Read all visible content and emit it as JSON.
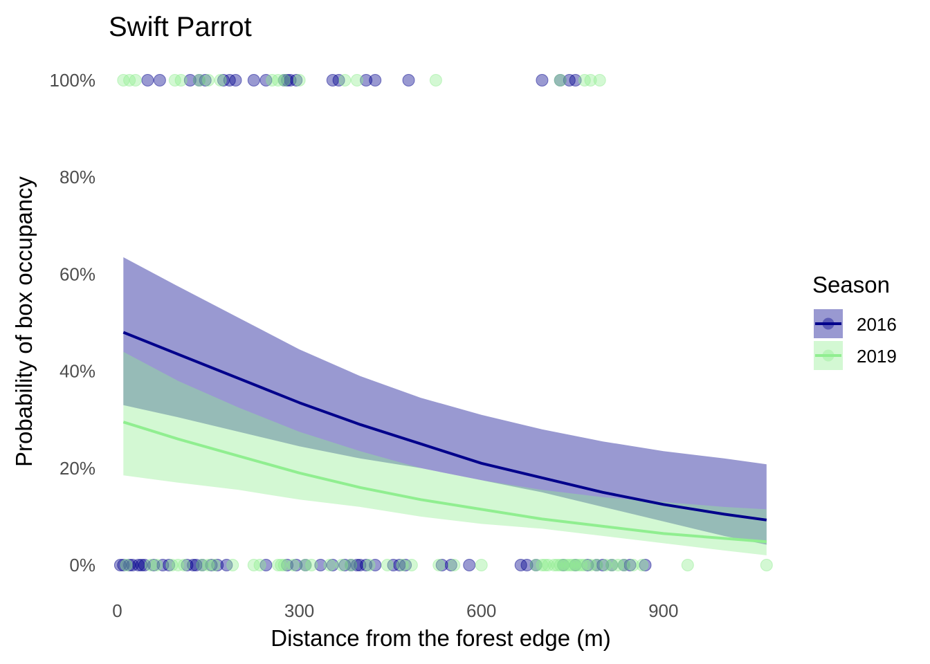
{
  "chart_data": {
    "type": "line",
    "title": "Swift Parrot",
    "xlabel": "Distance from the forest edge (m)",
    "ylabel": "Probability of box occupancy",
    "xlim": [
      -20,
      1085
    ],
    "ylim": [
      -0.04,
      1.04
    ],
    "x_ticks": [
      0,
      300,
      600,
      900
    ],
    "x_tick_labels": [
      "0",
      "300",
      "600",
      "900"
    ],
    "y_ticks": [
      0,
      0.2,
      0.4,
      0.6,
      0.8,
      1.0
    ],
    "y_tick_labels": [
      "0%",
      "20%",
      "40%",
      "60%",
      "80%",
      "100%"
    ],
    "grid": false,
    "legend": {
      "title": "Season",
      "placement": "right"
    },
    "series": [
      {
        "name": "2016",
        "color": "#00008b",
        "fill_color": "#00008b",
        "points": [
          {
            "x": 10,
            "fit": 0.48,
            "lower": 0.33,
            "upper": 0.635
          },
          {
            "x": 100,
            "fit": 0.435,
            "lower": 0.305,
            "upper": 0.575
          },
          {
            "x": 200,
            "fit": 0.385,
            "lower": 0.275,
            "upper": 0.51
          },
          {
            "x": 300,
            "fit": 0.335,
            "lower": 0.245,
            "upper": 0.445
          },
          {
            "x": 400,
            "fit": 0.29,
            "lower": 0.22,
            "upper": 0.39
          },
          {
            "x": 500,
            "fit": 0.25,
            "lower": 0.2,
            "upper": 0.345
          },
          {
            "x": 600,
            "fit": 0.21,
            "lower": 0.175,
            "upper": 0.31
          },
          {
            "x": 700,
            "fit": 0.18,
            "lower": 0.15,
            "upper": 0.28
          },
          {
            "x": 800,
            "fit": 0.15,
            "lower": 0.12,
            "upper": 0.255
          },
          {
            "x": 900,
            "fit": 0.125,
            "lower": 0.09,
            "upper": 0.235
          },
          {
            "x": 1000,
            "fit": 0.105,
            "lower": 0.06,
            "upper": 0.22
          },
          {
            "x": 1070,
            "fit": 0.093,
            "lower": 0.042,
            "upper": 0.208
          }
        ],
        "observed_occupied_x": [
          50,
          70,
          120,
          135,
          145,
          175,
          185,
          195,
          225,
          245,
          275,
          280,
          285,
          295,
          355,
          365,
          410,
          425,
          480,
          700,
          730,
          745,
          755
        ],
        "observed_unoccupied_x": [
          5,
          10,
          20,
          25,
          35,
          40,
          45,
          60,
          75,
          85,
          115,
          125,
          130,
          140,
          155,
          165,
          180,
          245,
          280,
          295,
          310,
          335,
          355,
          375,
          385,
          395,
          400,
          410,
          425,
          455,
          465,
          475,
          535,
          550,
          580,
          665,
          675,
          690,
          735,
          755,
          775,
          790,
          800,
          815,
          835,
          845,
          870
        ]
      },
      {
        "name": "2019",
        "color": "#90ee90",
        "fill_color": "#90ee90",
        "points": [
          {
            "x": 10,
            "fit": 0.295,
            "lower": 0.185,
            "upper": 0.44
          },
          {
            "x": 100,
            "fit": 0.26,
            "lower": 0.17,
            "upper": 0.38
          },
          {
            "x": 200,
            "fit": 0.225,
            "lower": 0.155,
            "upper": 0.325
          },
          {
            "x": 300,
            "fit": 0.19,
            "lower": 0.135,
            "upper": 0.275
          },
          {
            "x": 400,
            "fit": 0.16,
            "lower": 0.12,
            "upper": 0.235
          },
          {
            "x": 500,
            "fit": 0.135,
            "lower": 0.1,
            "upper": 0.2
          },
          {
            "x": 600,
            "fit": 0.115,
            "lower": 0.085,
            "upper": 0.175
          },
          {
            "x": 700,
            "fit": 0.095,
            "lower": 0.075,
            "upper": 0.155
          },
          {
            "x": 800,
            "fit": 0.08,
            "lower": 0.06,
            "upper": 0.14
          },
          {
            "x": 900,
            "fit": 0.065,
            "lower": 0.045,
            "upper": 0.13
          },
          {
            "x": 1000,
            "fit": 0.055,
            "lower": 0.03,
            "upper": 0.12
          },
          {
            "x": 1070,
            "fit": 0.048,
            "lower": 0.02,
            "upper": 0.115
          }
        ],
        "observed_occupied_x": [
          10,
          20,
          30,
          95,
          105,
          135,
          150,
          170,
          255,
          265,
          275,
          300,
          375,
          395,
          525,
          730,
          770,
          780,
          795
        ],
        "observed_unoccupied_x": [
          15,
          55,
          65,
          90,
          100,
          110,
          140,
          150,
          160,
          190,
          225,
          235,
          265,
          270,
          275,
          290,
          310,
          320,
          350,
          370,
          385,
          415,
          445,
          470,
          485,
          530,
          555,
          600,
          690,
          700,
          705,
          710,
          720,
          725,
          730,
          735,
          740,
          745,
          750,
          755,
          760,
          765,
          770,
          780,
          790,
          805,
          815,
          825,
          835,
          850,
          865,
          940,
          1070
        ]
      }
    ]
  }
}
